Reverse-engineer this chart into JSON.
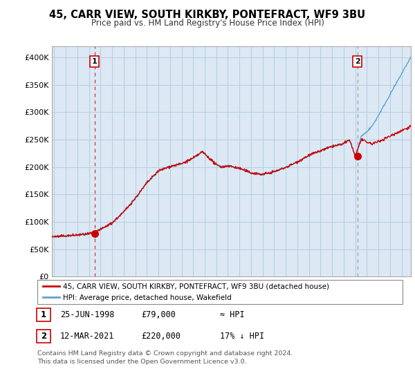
{
  "title": "45, CARR VIEW, SOUTH KIRKBY, PONTEFRACT, WF9 3BU",
  "subtitle": "Price paid vs. HM Land Registry's House Price Index (HPI)",
  "bg_color": "#ffffff",
  "plot_bg_color": "#dce9f5",
  "grid_color": "#b8cfe0",
  "line_color_hpi": "#5ba3d0",
  "line_color_prop": "#cc0000",
  "vline1_color": "#cc0000",
  "vline2_color": "#888888",
  "point1_x": 1998.48,
  "point1_y": 79000,
  "point2_x": 2021.19,
  "point2_y": 220000,
  "legend_prop": "45, CARR VIEW, SOUTH KIRKBY, PONTEFRACT, WF9 3BU (detached house)",
  "legend_hpi": "HPI: Average price, detached house, Wakefield",
  "table_row1": [
    "1",
    "25-JUN-1998",
    "£79,000",
    "≈ HPI"
  ],
  "table_row2": [
    "2",
    "12-MAR-2021",
    "£220,000",
    "17% ↓ HPI"
  ],
  "footer": "Contains HM Land Registry data © Crown copyright and database right 2024.\nThis data is licensed under the Open Government Licence v3.0.",
  "ylim": [
    0,
    420000
  ],
  "xlim_start": 1994.8,
  "xlim_end": 2025.8,
  "yticks": [
    0,
    50000,
    100000,
    150000,
    200000,
    250000,
    300000,
    350000,
    400000
  ],
  "ytick_labels": [
    "£0",
    "£50K",
    "£100K",
    "£150K",
    "£200K",
    "£250K",
    "£300K",
    "£350K",
    "£400K"
  ],
  "xticks": [
    1995,
    1996,
    1997,
    1998,
    1999,
    2000,
    2001,
    2002,
    2003,
    2004,
    2005,
    2006,
    2007,
    2008,
    2009,
    2010,
    2011,
    2012,
    2013,
    2014,
    2015,
    2016,
    2017,
    2018,
    2019,
    2020,
    2021,
    2022,
    2023,
    2024,
    2025
  ]
}
